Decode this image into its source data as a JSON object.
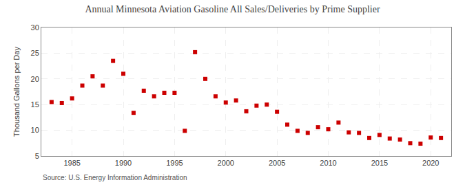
{
  "chart_data": {
    "type": "scatter",
    "title": "Annual Minnesota Aviation Gasoline All Sales/Deliveries by Prime Supplier",
    "ylabel": "Thousand Gallons per Day",
    "source": "Source: U.S. Energy Information Administration",
    "x": [
      1983,
      1984,
      1985,
      1986,
      1987,
      1988,
      1989,
      1990,
      1991,
      1992,
      1993,
      1994,
      1995,
      1996,
      1997,
      1998,
      1999,
      2000,
      2001,
      2002,
      2003,
      2004,
      2005,
      2006,
      2007,
      2008,
      2009,
      2010,
      2011,
      2012,
      2013,
      2014,
      2015,
      2016,
      2017,
      2018,
      2019,
      2020,
      2021
    ],
    "values": [
      15.5,
      15.3,
      16.2,
      18.7,
      20.5,
      18.7,
      23.5,
      21.0,
      13.4,
      17.7,
      16.6,
      17.3,
      17.3,
      9.9,
      25.2,
      20.0,
      16.6,
      15.4,
      15.8,
      13.7,
      14.8,
      15.0,
      13.6,
      11.1,
      9.9,
      9.5,
      10.6,
      10.2,
      11.5,
      9.6,
      9.5,
      8.5,
      9.1,
      8.4,
      8.2,
      7.5,
      7.4,
      8.6,
      8.5
    ],
    "color": "#cc0000",
    "marker": "square",
    "xlim": [
      1982,
      2022
    ],
    "xticks": [
      1985,
      1990,
      1995,
      2000,
      2005,
      2010,
      2015,
      2020
    ],
    "ylim": [
      5,
      30
    ],
    "yticks": [
      5,
      10,
      15,
      20,
      25,
      30
    ],
    "grid": true
  }
}
